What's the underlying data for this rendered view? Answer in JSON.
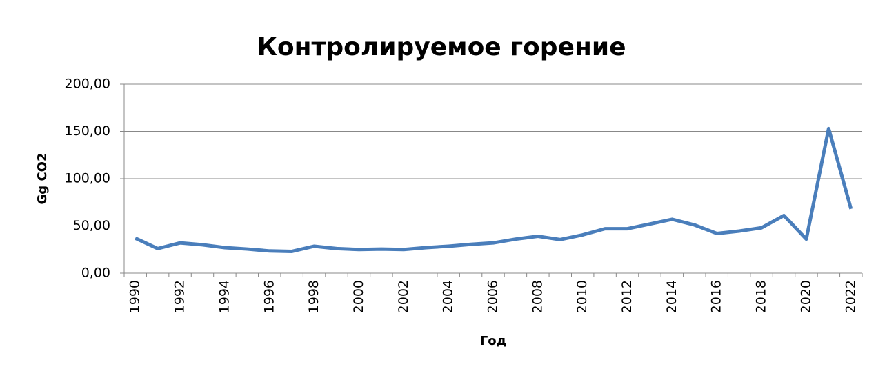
{
  "chart_data": {
    "type": "line",
    "title": "Контролируемое горение",
    "x_label": "Год",
    "y_label": "Gg CO2",
    "categories": [
      "1990",
      null,
      "1992",
      null,
      "1994",
      null,
      "1996",
      null,
      "1998",
      null,
      "2000",
      null,
      "2002",
      null,
      "2004",
      null,
      "2006",
      null,
      "2008",
      null,
      "2010",
      null,
      "2012",
      null,
      "2014",
      null,
      "2016",
      null,
      "2018",
      null,
      "2020",
      null,
      "2022"
    ],
    "series": [
      {
        "name": "Gg CO2",
        "color": "#4a7ebb",
        "values": [
          37,
          26,
          32,
          30,
          27,
          25.5,
          23.5,
          23,
          28.5,
          26,
          25,
          25.5,
          25,
          27,
          28.5,
          30.5,
          32,
          36,
          39,
          35.5,
          40.5,
          47,
          47,
          52,
          57,
          51,
          42,
          44.5,
          48,
          61,
          36,
          153,
          68
        ]
      }
    ],
    "ylim": [
      0,
      200
    ],
    "yticks": [
      {
        "value": 0,
        "label": "0,00"
      },
      {
        "value": 50,
        "label": "50,00"
      },
      {
        "value": 100,
        "label": "100,00"
      },
      {
        "value": 150,
        "label": "150,00"
      },
      {
        "value": 200,
        "label": "200,00"
      }
    ],
    "grid": true
  }
}
